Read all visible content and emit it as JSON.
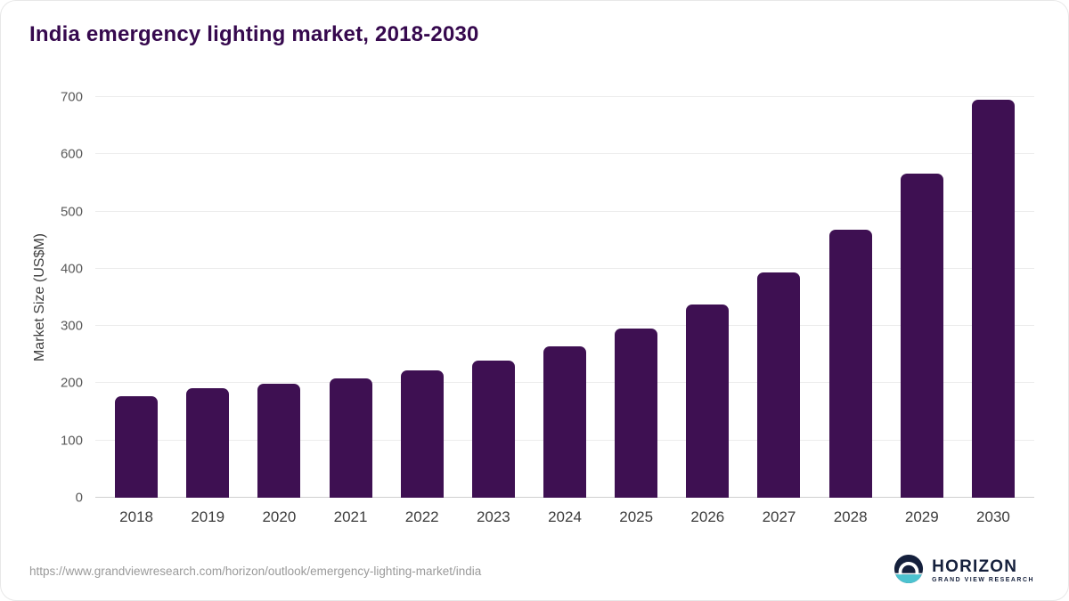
{
  "title": "India emergency lighting market, 2018-2030",
  "chart_data": {
    "type": "bar",
    "title": "India emergency lighting market, 2018-2030",
    "categories": [
      "2018",
      "2019",
      "2020",
      "2021",
      "2022",
      "2023",
      "2024",
      "2025",
      "2026",
      "2027",
      "2028",
      "2029",
      "2030"
    ],
    "values": [
      178,
      192,
      199,
      208,
      222,
      240,
      265,
      295,
      337,
      394,
      468,
      567,
      695
    ],
    "xlabel": "",
    "ylabel": "Market Size (US$M)",
    "ylim": [
      0,
      700
    ],
    "ytick_step": 100,
    "grid": true,
    "legend": "none"
  },
  "footer": {
    "source_url": "https://www.grandviewresearch.com/horizon/outlook/emergency-lighting-market/india",
    "logo_name": "HORIZON",
    "logo_tagline": "GRAND VIEW RESEARCH"
  },
  "colors": {
    "bar": "#3e1052",
    "title": "#36094e",
    "logo_navy": "#15203c",
    "logo_teal": "#4cc3d0",
    "gridline": "#ececec",
    "axis_line": "#cfcfcf"
  }
}
